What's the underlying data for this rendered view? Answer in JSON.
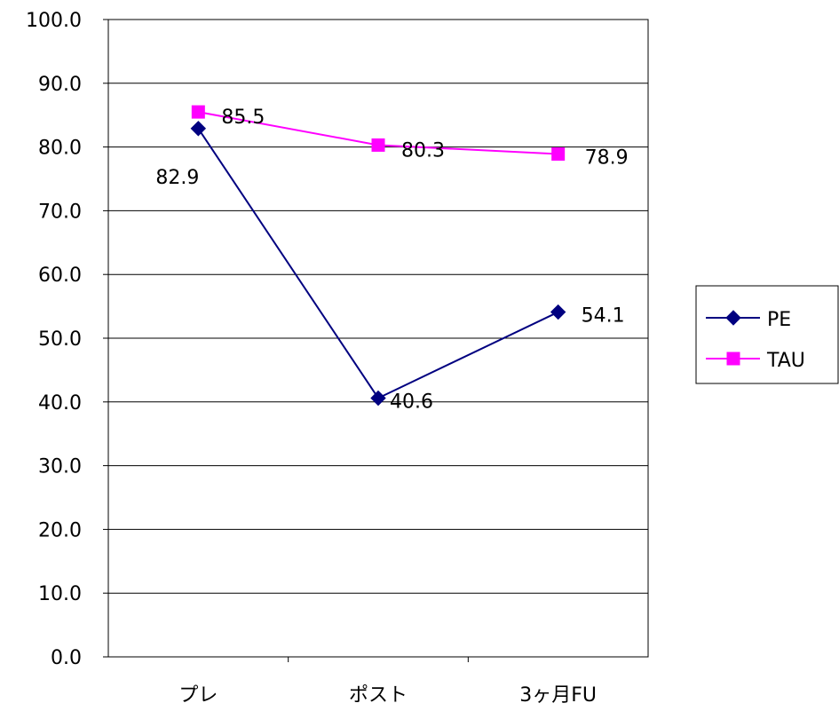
{
  "chart_data": {
    "type": "line",
    "categories": [
      "プレ",
      "ポスト",
      "3ヶ月FU"
    ],
    "series": [
      {
        "name": "PE",
        "values": [
          82.9,
          40.6,
          54.1
        ],
        "color": "#000080",
        "marker": "diamond"
      },
      {
        "name": "TAU",
        "values": [
          85.5,
          80.3,
          78.9
        ],
        "color": "#ff00ff",
        "marker": "square"
      }
    ],
    "ylim": [
      0,
      100
    ],
    "yticks": [
      "0.0",
      "10.0",
      "20.0",
      "30.0",
      "40.0",
      "50.0",
      "60.0",
      "70.0",
      "80.0",
      "90.0",
      "100.0"
    ],
    "grid": true,
    "legend": "right",
    "title": "",
    "xlabel": "",
    "ylabel": ""
  }
}
